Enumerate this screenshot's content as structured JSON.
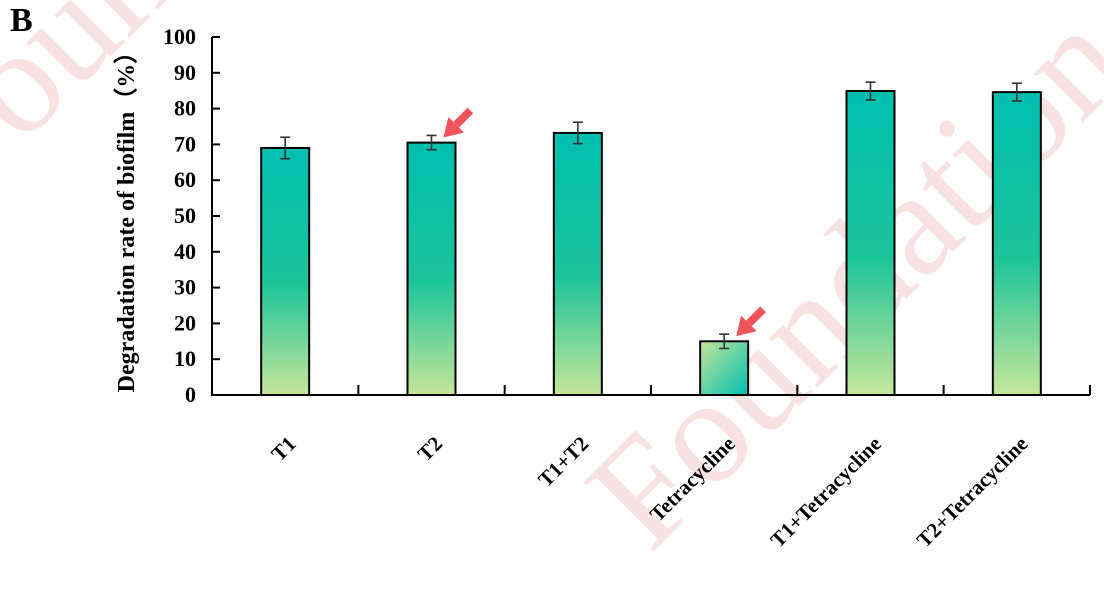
{
  "panel_label": "B",
  "watermark": "Foundation",
  "colors": {
    "bar_top": "#00bfb0",
    "bar_mid": "#1cc49a",
    "bar_bottom": "#c6e69a",
    "arrow": "#f0545a",
    "axis": "#000000",
    "watermark": "#f4c9c9"
  },
  "chart_data": {
    "type": "bar",
    "title": "",
    "xlabel": "",
    "ylabel": "Degradation rate of biofilm（%）",
    "ylim": [
      0,
      100
    ],
    "yticks": [
      0,
      10,
      20,
      30,
      40,
      50,
      60,
      70,
      80,
      90,
      100
    ],
    "grid": false,
    "legend": "none",
    "categories": [
      "T1",
      "T2",
      "T1+T2",
      "Tetracycline",
      "T1+Tetracycline",
      "T2+Tetracycline"
    ],
    "values": [
      69,
      70.5,
      73.2,
      15,
      84.9,
      84.6
    ],
    "errors": [
      3,
      2,
      3,
      2,
      2.5,
      2.5
    ],
    "highlighted": [
      "T2",
      "Tetracycline"
    ]
  }
}
